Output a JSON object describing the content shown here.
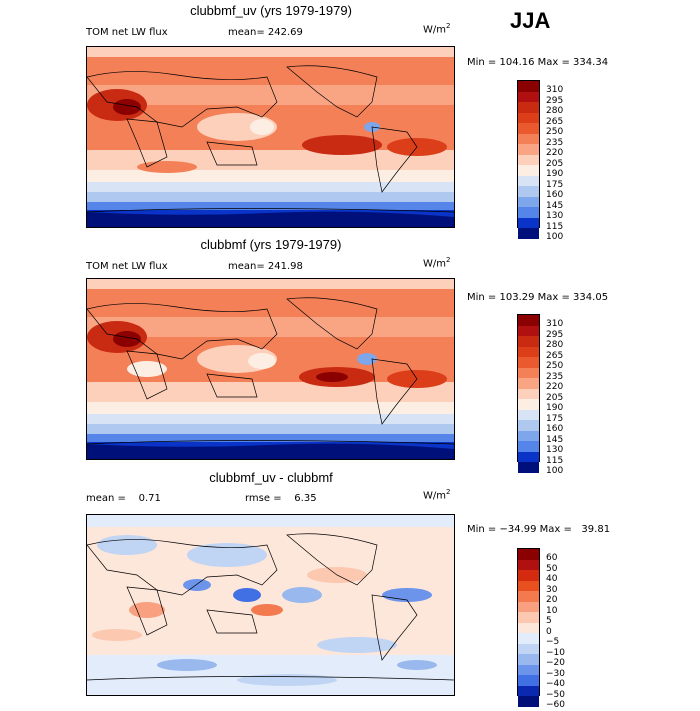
{
  "season": "JJA",
  "panels": [
    {
      "title": "clubbmf_uv (yrs 1979-1979)",
      "field_label": "TOM net LW flux",
      "mean_text": "mean= 242.69",
      "units": "W/m",
      "units_exp": "2",
      "minmax": "Min = 104.16 Max = 334.34",
      "levels": [
        "310",
        "295",
        "280",
        "265",
        "250",
        "235",
        "220",
        "205",
        "190",
        "175",
        "160",
        "145",
        "130",
        "115",
        "100"
      ]
    },
    {
      "title": "clubbmf (yrs 1979-1979)",
      "field_label": "TOM net LW flux",
      "mean_text": "mean= 241.98",
      "units": "W/m",
      "units_exp": "2",
      "minmax": "Min = 103.29 Max = 334.05",
      "levels": [
        "310",
        "295",
        "280",
        "265",
        "250",
        "235",
        "220",
        "205",
        "190",
        "175",
        "160",
        "145",
        "130",
        "115",
        "100"
      ]
    },
    {
      "title": "clubbmf_uv - clubbmf",
      "mean_text": "mean =    0.71",
      "rmse_text": "rmse =    6.35",
      "units": "W/m",
      "units_exp": "2",
      "minmax": "Min = −34.99 Max =   39.81",
      "levels": [
        "60",
        "50",
        "40",
        "30",
        "20",
        "10",
        "5",
        "0",
        "−5",
        "−10",
        "−20",
        "−30",
        "−40",
        "−50",
        "−60"
      ]
    }
  ],
  "colors": {
    "field_scale": [
      "#8b0000",
      "#b01010",
      "#c82a12",
      "#dc3e1a",
      "#ea5a2e",
      "#f48058",
      "#f9a584",
      "#fcd0ba",
      "#fdeee4",
      "#d8e4f6",
      "#aec8ef",
      "#7ea6ea",
      "#5585e8",
      "#2c60e0",
      "#0a34c8",
      "#00107a"
    ],
    "diff_scale": [
      "#8b0000",
      "#b01010",
      "#d42a10",
      "#e85020",
      "#f27a4e",
      "#f8a080",
      "#fcc8b0",
      "#fde6da",
      "#e2ecfa",
      "#c0d4f4",
      "#98b8ee",
      "#6c94ea",
      "#4070e4",
      "#1a48d6",
      "#0a28b0",
      "#001078"
    ]
  }
}
